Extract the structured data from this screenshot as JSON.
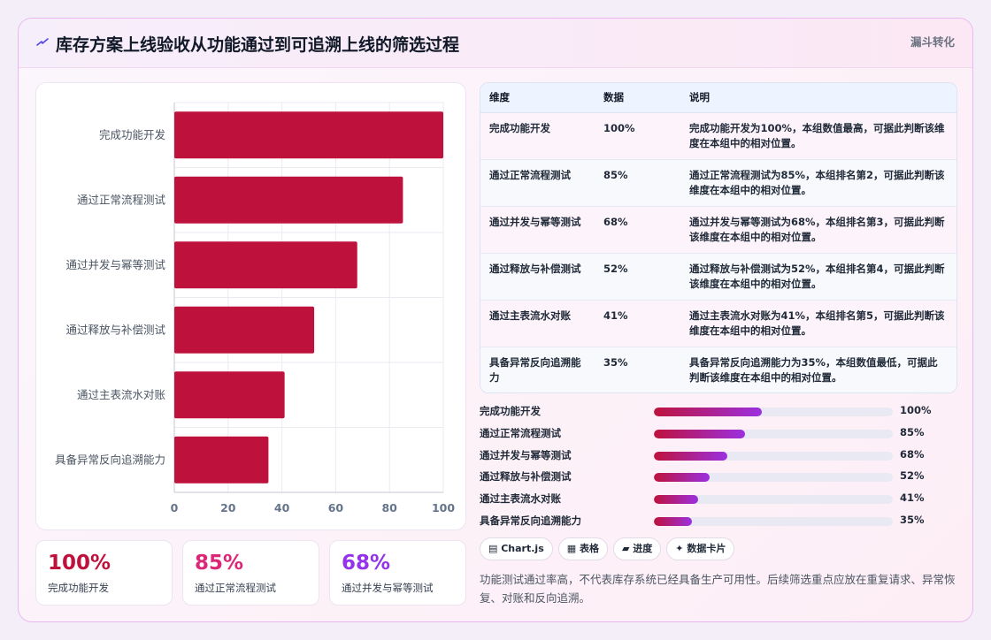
{
  "header": {
    "title": "库存方案上线验收从功能通过到可追溯上线的筛选过程",
    "badge": "漏斗转化"
  },
  "chart_data": {
    "type": "bar",
    "orientation": "horizontal",
    "categories": [
      "完成功能开发",
      "通过正常流程测试",
      "通过并发与幂等测试",
      "通过释放与补偿测试",
      "通过主表流水对账",
      "具备异常反向追溯能力"
    ],
    "values": [
      100,
      85,
      68,
      52,
      41,
      35
    ],
    "xlim": [
      0,
      100
    ],
    "xticks": [
      0,
      20,
      40,
      60,
      80,
      100
    ],
    "grid": true,
    "bar_color": "#be123c"
  },
  "kpis": [
    {
      "value": "100%",
      "label": "完成功能开发",
      "color": "#be123c"
    },
    {
      "value": "85%",
      "label": "通过正常流程测试",
      "color": "#db2777"
    },
    {
      "value": "68%",
      "label": "通过并发与幂等测试",
      "color": "#9333ea"
    }
  ],
  "table": {
    "headers": [
      "维度",
      "数据",
      "说明"
    ],
    "rows": [
      {
        "dim": "完成功能开发",
        "val": "100%",
        "desc": "完成功能开发为100%，本组数值最高，可据此判断该维度在本组中的相对位置。"
      },
      {
        "dim": "通过正常流程测试",
        "val": "85%",
        "desc": "通过正常流程测试为85%，本组排名第2，可据此判断该维度在本组中的相对位置。"
      },
      {
        "dim": "通过并发与幂等测试",
        "val": "68%",
        "desc": "通过并发与幂等测试为68%，本组排名第3，可据此判断该维度在本组中的相对位置。"
      },
      {
        "dim": "通过释放与补偿测试",
        "val": "52%",
        "desc": "通过释放与补偿测试为52%，本组排名第4，可据此判断该维度在本组中的相对位置。"
      },
      {
        "dim": "通过主表流水对账",
        "val": "41%",
        "desc": "通过主表流水对账为41%，本组排名第5，可据此判断该维度在本组中的相对位置。"
      },
      {
        "dim": "具备异常反向追溯能力",
        "val": "35%",
        "desc": "具备异常反向追溯能力为35%，本组数值最低，可据此判断该维度在本组中的相对位置。"
      }
    ]
  },
  "progress": [
    {
      "label": "完成功能开发",
      "value": 100,
      "text": "100%"
    },
    {
      "label": "通过正常流程测试",
      "value": 85,
      "text": "85%"
    },
    {
      "label": "通过并发与幂等测试",
      "value": 68,
      "text": "68%"
    },
    {
      "label": "通过释放与补偿测试",
      "value": 52,
      "text": "52%"
    },
    {
      "label": "通过主表流水对账",
      "value": 41,
      "text": "41%"
    },
    {
      "label": "具备异常反向追溯能力",
      "value": 35,
      "text": "35%"
    }
  ],
  "tags": [
    {
      "icon": "chart-icon",
      "glyph": "▤",
      "label": "Chart.js"
    },
    {
      "icon": "table-icon",
      "glyph": "▦",
      "label": "表格"
    },
    {
      "icon": "progress-icon",
      "glyph": "▰",
      "label": "进度"
    },
    {
      "icon": "sparkle-icon",
      "glyph": "✦",
      "label": "数据卡片"
    }
  ],
  "note": "功能测试通过率高，不代表库存系统已经具备生产可用性。后续筛选重点应放在重复请求、异常恢复、对账和反向追溯。"
}
